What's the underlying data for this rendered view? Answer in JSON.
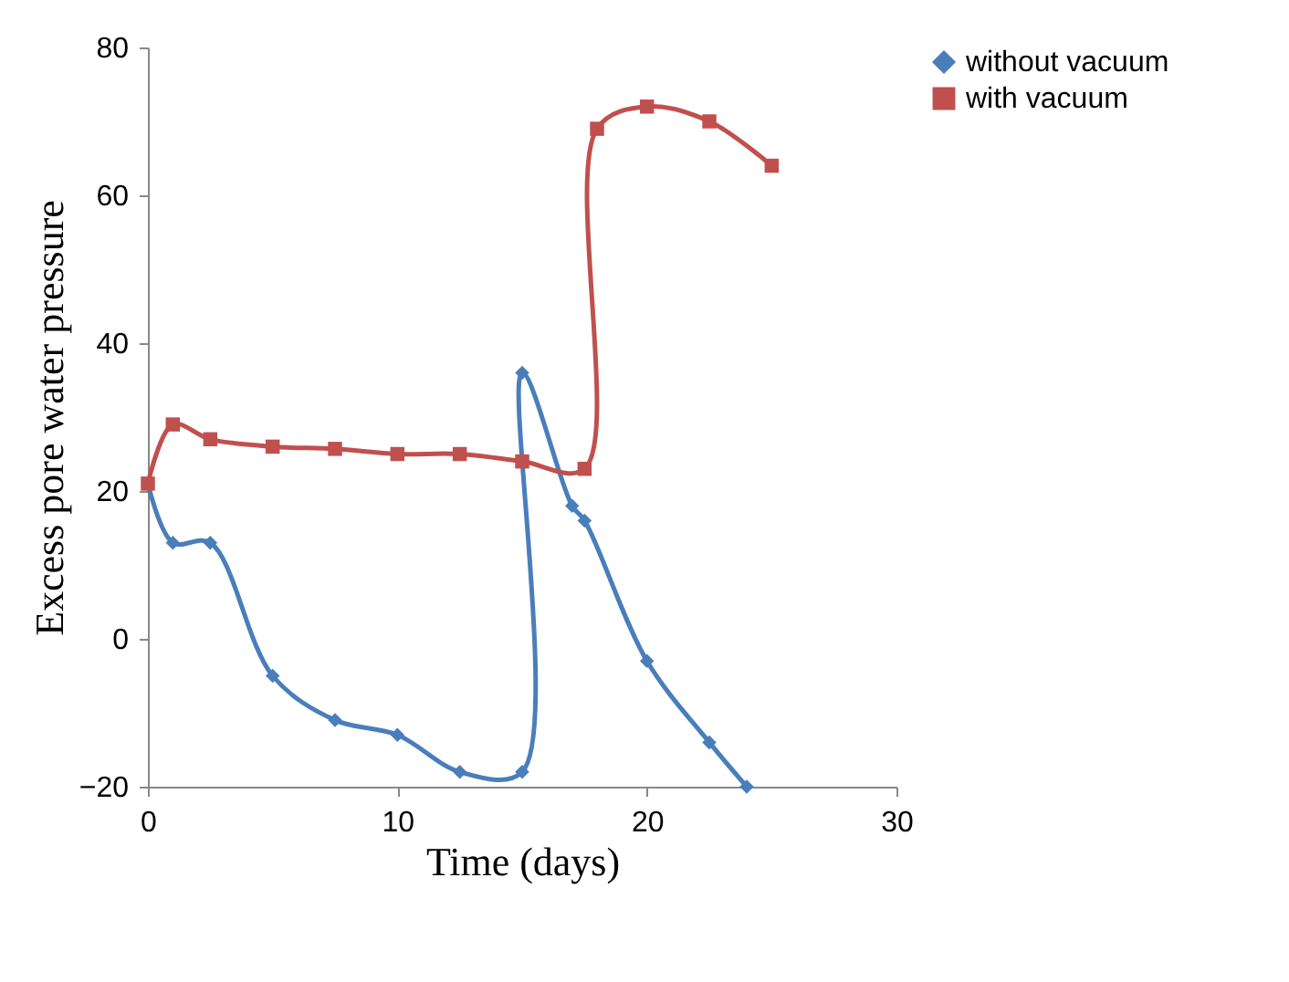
{
  "chart_data": {
    "type": "line",
    "xlabel": "Time (days)",
    "ylabel": "Excess pore water pressure",
    "xlim": [
      0,
      30
    ],
    "xticks": [
      0,
      10,
      20,
      30
    ],
    "ylim": [
      -20,
      80
    ],
    "yticks": [
      -20,
      0,
      20,
      40,
      60,
      80
    ],
    "legend": "right",
    "grid": false,
    "series": [
      {
        "name": "without vacuum",
        "color": "#4a7ebb",
        "marker": "diamond",
        "x": [
          0,
          1,
          2.5,
          5,
          7.5,
          10,
          12.5,
          15,
          15,
          17,
          17.5,
          20,
          22.5,
          24
        ],
        "values": [
          21,
          13,
          13,
          -5,
          -11,
          -13,
          -18,
          -18,
          36,
          18,
          16,
          -3,
          -14,
          -20
        ]
      },
      {
        "name": "with vacuum",
        "color": "#c0504d",
        "marker": "square",
        "x": [
          0,
          1,
          2.5,
          5,
          7.5,
          10,
          12.5,
          15,
          17.5,
          18,
          20,
          22.5,
          25
        ],
        "values": [
          21,
          29,
          27,
          26,
          25.7,
          25,
          25,
          24,
          23,
          69,
          72,
          70,
          64
        ]
      }
    ]
  }
}
